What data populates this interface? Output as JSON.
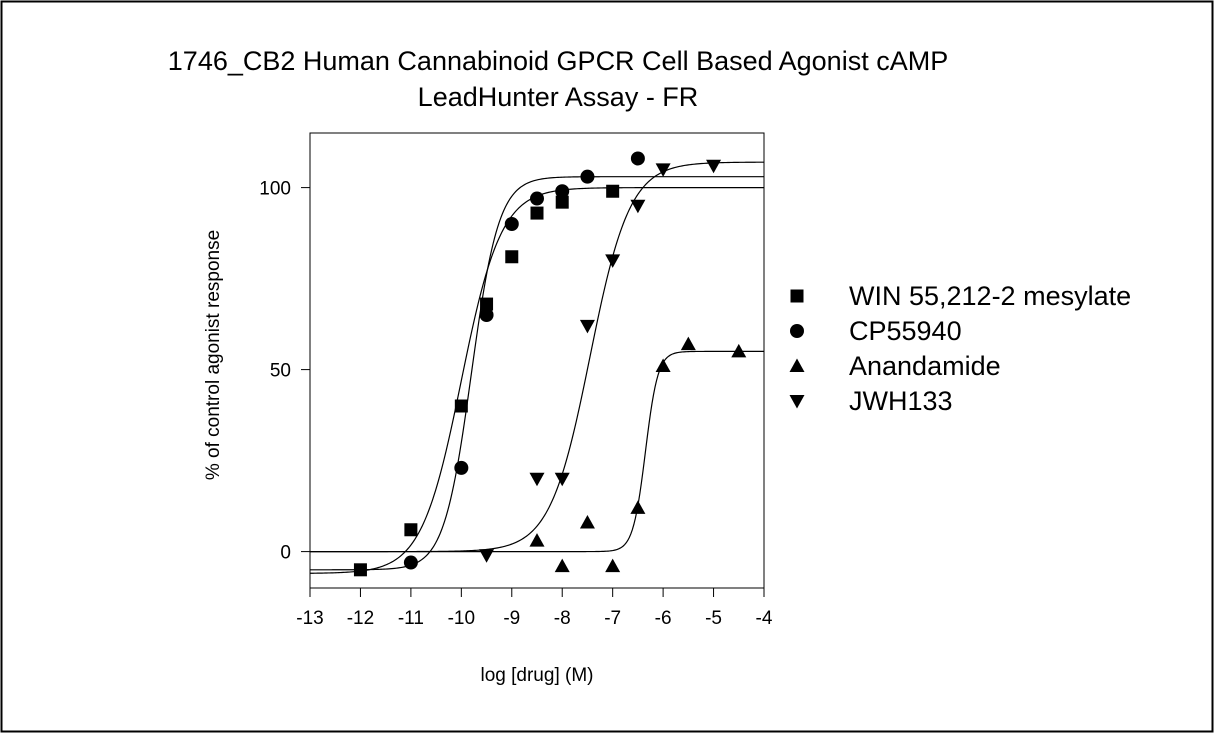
{
  "chart_data": {
    "type": "scatter",
    "title": "1746_CB2 Human Cannabinoid GPCR Cell Based Agonist cAMP",
    "subtitle": "LeadHunter Assay - FR",
    "xlabel": "log [drug] (M)",
    "ylabel": "% of control agonist response",
    "xlim": [
      -13,
      -4
    ],
    "ylim": [
      -10,
      115
    ],
    "xticks": [
      -13,
      -12,
      -11,
      -10,
      -9,
      -8,
      -7,
      -6,
      -5,
      -4
    ],
    "yticks": [
      0,
      50,
      100
    ],
    "grid": false,
    "legend_position": "right",
    "series": [
      {
        "name": "WIN 55,212-2 mesylate",
        "marker": "square",
        "color": "#000000",
        "x": [
          -12,
          -11,
          -10,
          -9.5,
          -9,
          -8.5,
          -8,
          -7
        ],
        "y": [
          -5,
          6,
          40,
          68,
          81,
          93,
          96,
          99
        ],
        "fit": {
          "bottom": -6,
          "top": 100,
          "logEC50": -10.0,
          "hill": 1.1
        }
      },
      {
        "name": "CP55940",
        "marker": "circle",
        "color": "#000000",
        "x": [
          -11,
          -10,
          -9.5,
          -9,
          -8.5,
          -8,
          -7.5,
          -6.5
        ],
        "y": [
          -3,
          23,
          65,
          90,
          97,
          99,
          103,
          108
        ],
        "fit": {
          "bottom": -5,
          "top": 103,
          "logEC50": -9.8,
          "hill": 1.6
        }
      },
      {
        "name": "Anandamide",
        "marker": "triangle-up",
        "color": "#000000",
        "x": [
          -8.5,
          -8,
          -7.5,
          -7,
          -6.5,
          -6,
          -5.5,
          -4.5
        ],
        "y": [
          3,
          -4,
          8,
          -4,
          12,
          51,
          57,
          55
        ],
        "fit": {
          "bottom": 0,
          "top": 55,
          "logEC50": -6.35,
          "hill": 3.5
        }
      },
      {
        "name": "JWH133",
        "marker": "triangle-down",
        "color": "#000000",
        "x": [
          -9.5,
          -8.5,
          -8,
          -7.5,
          -7,
          -6.5,
          -6,
          -5
        ],
        "y": [
          -1,
          20,
          20,
          62,
          80,
          95,
          105,
          106
        ],
        "fit": {
          "bottom": 0,
          "top": 107,
          "logEC50": -7.45,
          "hill": 1.1
        }
      }
    ]
  }
}
